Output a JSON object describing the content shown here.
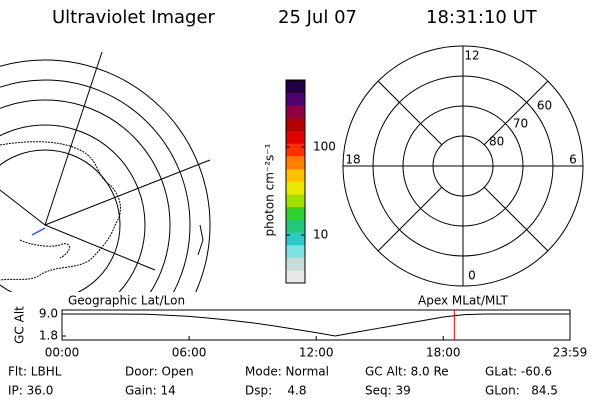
{
  "header": {
    "title": "Ultraviolet Imager",
    "date": "25 Jul 07",
    "time": "18:31:10 UT"
  },
  "colorbar": {
    "label": "photon cm⁻²s⁻¹",
    "log": true,
    "lim": [
      2.85,
      575
    ],
    "ticks": [
      10,
      100
    ],
    "colors": [
      "#e8e8e8",
      "#c8dcdc",
      "#7fe0e0",
      "#30c8c8",
      "#20c878",
      "#30d030",
      "#a0e000",
      "#e8e800",
      "#ffc000",
      "#ff8000",
      "#ff3000",
      "#e00000",
      "#b00000",
      "#900040",
      "#500070",
      "#200040"
    ]
  },
  "polar": {
    "rlim": [
      90,
      50
    ],
    "rticks": [
      80,
      70,
      60
    ],
    "mlt_ticks": [
      12,
      18,
      6,
      0
    ]
  },
  "chart_data": {
    "type": "line",
    "left_title": "Geographic Lat/Lon",
    "right_title": "Apex MLat/MLT",
    "ylabel": "GC Alt",
    "x": [
      0,
      2,
      4,
      5,
      6,
      7,
      8,
      9,
      10,
      11,
      12,
      12.9,
      14,
      15,
      16,
      17,
      18,
      19,
      20,
      22,
      23.98
    ],
    "series": [
      {
        "name": "GC Alt",
        "color": "#000000",
        "values": [
          9.0,
          9.0,
          8.9,
          8.6,
          8.2,
          7.6,
          6.9,
          6.1,
          5.1,
          4.0,
          2.9,
          1.8,
          3.2,
          4.4,
          5.6,
          6.8,
          8.0,
          8.8,
          9.0,
          9.0,
          9.0
        ]
      }
    ],
    "marker": 18.52,
    "marker_color": "#e00000",
    "xlim": [
      0,
      23.983
    ],
    "xticks": [
      {
        "value": 0,
        "label": "00:00"
      },
      {
        "value": 6,
        "label": "06:00"
      },
      {
        "value": 12,
        "label": "12:00"
      },
      {
        "value": 18,
        "label": "18:00"
      },
      {
        "value": 23.983,
        "label": "23:59"
      }
    ],
    "ylim": [
      0.5,
      10.3
    ],
    "yticks": [
      {
        "value": 9.0,
        "label": "9.0"
      },
      {
        "value": 1.8,
        "label": "1.8"
      }
    ]
  },
  "footer": {
    "rows": [
      [
        "Flt: LBHL",
        "Door: Open",
        "Mode: Normal",
        "GC Alt: 8.0 Re",
        "GLat: -60.6"
      ],
      [
        "IP: 36.0",
        "Gain: 14",
        "Dsp:    4.8",
        "Seq: 39",
        "GLon:   84.5"
      ]
    ]
  }
}
